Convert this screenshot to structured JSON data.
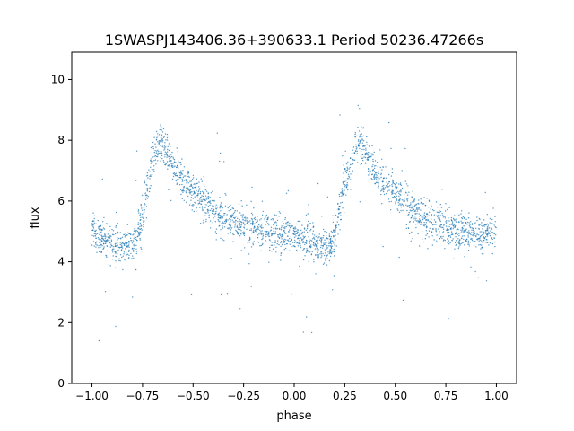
{
  "chart_data": {
    "type": "scatter",
    "title": "1SWASPJ143406.36+390633.1 Period 50236.47266s",
    "xlabel": "phase",
    "ylabel": "flux",
    "xlim": [
      -1.1,
      1.1
    ],
    "ylim": [
      0,
      10.9
    ],
    "xticks": [
      -1.0,
      -0.75,
      -0.5,
      -0.25,
      0.0,
      0.25,
      0.5,
      0.75,
      1.0
    ],
    "xtick_labels": [
      "−1.00",
      "−0.75",
      "−0.50",
      "−0.25",
      "0.00",
      "0.25",
      "0.50",
      "0.75",
      "1.00"
    ],
    "yticks": [
      0,
      2,
      4,
      6,
      8,
      10
    ],
    "ytick_labels": [
      "0",
      "2",
      "4",
      "6",
      "8",
      "10"
    ],
    "grid": false,
    "legend": "none",
    "point_color": "#1f77b4",
    "series": [
      {
        "description_points": "phase-folded light curve, shown twice over phase −1 to 1",
        "x": [
          -1.0,
          -0.95,
          -0.9,
          -0.85,
          -0.8,
          -0.78,
          -0.75,
          -0.72,
          -0.7,
          -0.68,
          -0.66,
          -0.64,
          -0.62,
          -0.6,
          -0.55,
          -0.5,
          -0.45,
          -0.4,
          -0.35,
          -0.3,
          -0.25,
          -0.2,
          -0.15,
          -0.1,
          -0.05,
          0.0,
          0.05,
          0.1,
          0.15,
          0.18,
          0.2,
          0.22,
          0.25,
          0.28,
          0.3,
          0.32,
          0.34,
          0.36,
          0.38,
          0.4,
          0.45,
          0.5,
          0.55,
          0.6,
          0.65,
          0.7,
          0.75,
          0.8,
          0.85,
          0.9,
          0.95,
          1.0
        ],
        "y": [
          5.0,
          4.8,
          4.6,
          4.5,
          4.5,
          4.8,
          5.6,
          6.7,
          7.3,
          7.7,
          8.0,
          7.8,
          7.5,
          7.2,
          6.7,
          6.3,
          6.0,
          5.7,
          5.5,
          5.3,
          5.2,
          5.1,
          5.0,
          5.0,
          4.95,
          4.85,
          4.7,
          4.55,
          4.45,
          4.5,
          4.8,
          5.6,
          6.7,
          7.3,
          7.7,
          8.0,
          7.8,
          7.5,
          7.2,
          6.9,
          6.5,
          6.2,
          5.9,
          5.6,
          5.4,
          5.2,
          5.1,
          5.0,
          5.0,
          4.95,
          4.9,
          5.0
        ]
      }
    ]
  }
}
